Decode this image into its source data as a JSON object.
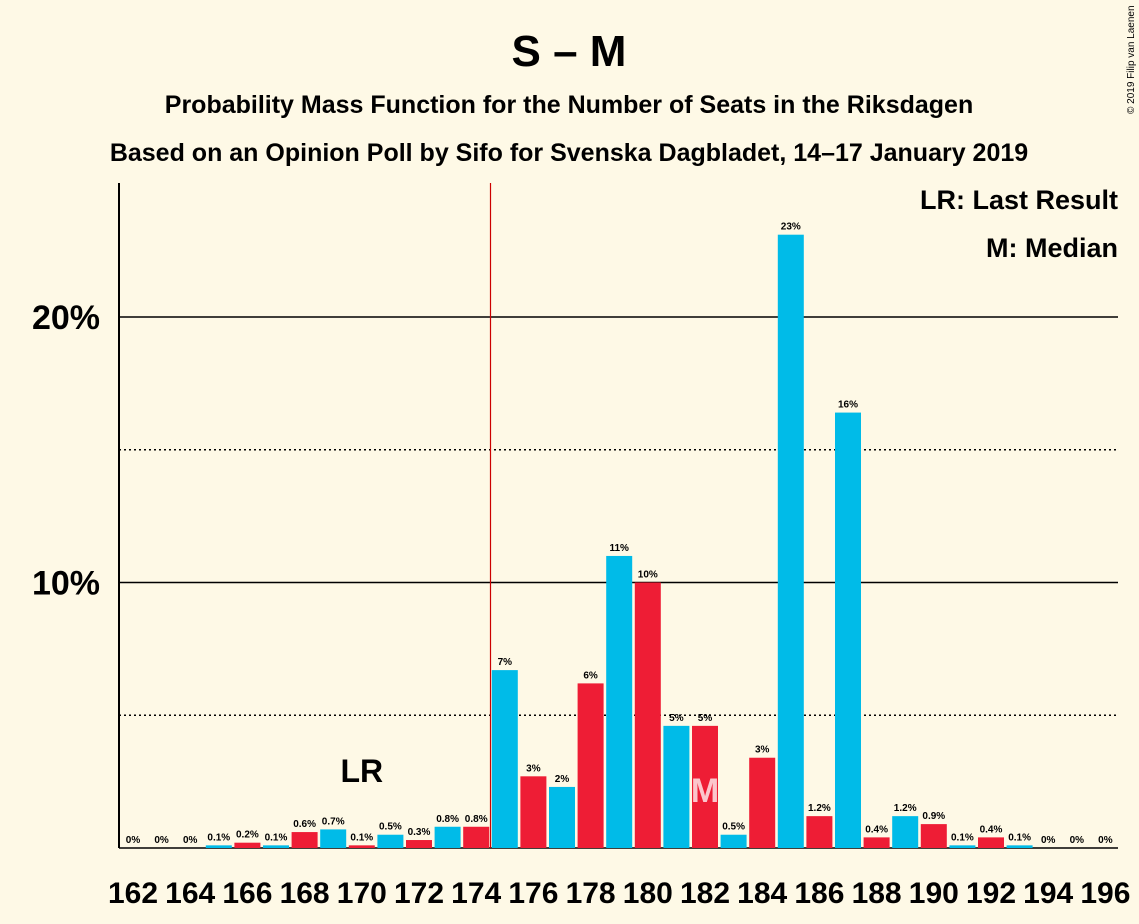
{
  "chart_data": {
    "type": "bar",
    "title": "S – M",
    "subtitle_1": "Probability Mass Function for the Number of Seats in the Riksdagen",
    "subtitle_2": "Based on an Opinion Poll by Sifo for Svenska Dagbladet, 14–17 January 2019",
    "copyright": "© 2019 Filip van Laenen",
    "legend": [
      "LR: Last Result",
      "M: Median"
    ],
    "legend_position": "top-right",
    "ylim": [
      0,
      25
    ],
    "ytick_labels": [
      {
        "value": 10,
        "label": "10%"
      },
      {
        "value": 20,
        "label": "20%"
      }
    ],
    "gridlines_solid": [
      10,
      20
    ],
    "gridlines_dotted": [
      5,
      15
    ],
    "majority_line_after_seat": 174,
    "last_result_seat": 170,
    "last_result_label": "LR",
    "median_seat": 182,
    "median_label": "M",
    "xtick_labels": [
      "162",
      "164",
      "166",
      "168",
      "170",
      "172",
      "174",
      "176",
      "178",
      "180",
      "182",
      "184",
      "186",
      "188",
      "190",
      "192",
      "194",
      "196"
    ],
    "colors": {
      "odd_seat": "#00bbe8",
      "even_seat": "#ee1d35",
      "majority_line": "#cc0000",
      "background": "#fef9e6"
    },
    "x": [
      162,
      163,
      164,
      165,
      166,
      167,
      168,
      169,
      170,
      171,
      172,
      173,
      174,
      175,
      176,
      177,
      178,
      179,
      180,
      181,
      182,
      183,
      184,
      185,
      186,
      187,
      188,
      189,
      190,
      191,
      192,
      193,
      194,
      195,
      196
    ],
    "values": [
      0,
      0,
      0,
      0.1,
      0.2,
      0.1,
      0.6,
      0.7,
      0.1,
      0.5,
      0.3,
      0.8,
      0.8,
      6.7,
      2.7,
      2.3,
      6.2,
      11.0,
      10.0,
      4.6,
      4.6,
      0.5,
      3.4,
      23.1,
      1.2,
      16.4,
      0.4,
      1.2,
      0.9,
      0.1,
      0.4,
      0.1,
      0,
      0,
      0
    ],
    "labels": [
      "0%",
      "0%",
      "0%",
      "0.1%",
      "0.2%",
      "0.1%",
      "0.6%",
      "0.7%",
      "0.1%",
      "0.5%",
      "0.3%",
      "0.8%",
      "0.8%",
      "7%",
      "3%",
      "2%",
      "6%",
      "11%",
      "10%",
      "5%",
      "5%",
      "0.5%",
      "3%",
      "23%",
      "1.2%",
      "16%",
      "0.4%",
      "1.2%",
      "0.9%",
      "0.1%",
      "0.4%",
      "0.1%",
      "0%",
      "0%",
      "0%"
    ]
  }
}
